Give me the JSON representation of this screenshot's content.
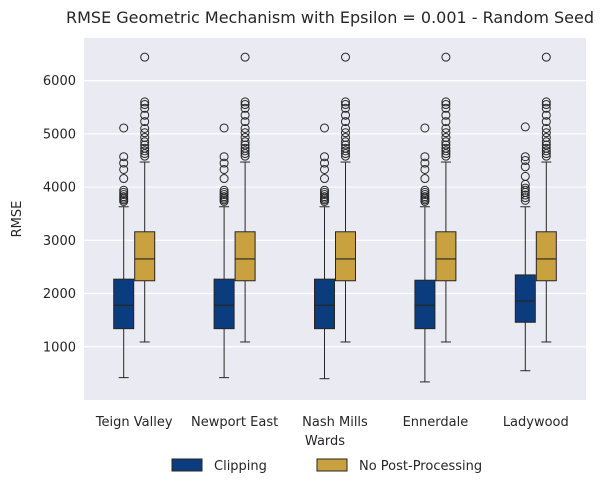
{
  "chart_data": {
    "type": "boxplot",
    "title": "RMSE Geometric Mechanism with Epsilon = 0.001  - Random Seed",
    "xlabel": "Wards",
    "ylabel": "RMSE",
    "ylim": [
      0,
      6800
    ],
    "yticks": [
      1000,
      2000,
      3000,
      4000,
      5000,
      6000
    ],
    "grid": true,
    "legend_position": "bottom-center",
    "categories": [
      "Teign Valley",
      "Newport East",
      "Nash Mills",
      "Ennerdale",
      "Ladywood"
    ],
    "series": [
      {
        "name": "Clipping",
        "color": "#0b3d7e",
        "boxes": [
          {
            "whislo": 420,
            "q1": 1340,
            "med": 1780,
            "q3": 2270,
            "whishi": 3630,
            "fliers": [
              3730,
              3760,
              3790,
              3820,
              3860,
              3900,
              3940,
              4160,
              4330,
              4450,
              4570,
              5110
            ]
          },
          {
            "whislo": 420,
            "q1": 1340,
            "med": 1780,
            "q3": 2270,
            "whishi": 3630,
            "fliers": [
              3730,
              3760,
              3790,
              3820,
              3860,
              3900,
              3940,
              4160,
              4330,
              4450,
              4570,
              5110
            ]
          },
          {
            "whislo": 400,
            "q1": 1340,
            "med": 1780,
            "q3": 2270,
            "whishi": 3630,
            "fliers": [
              3730,
              3760,
              3790,
              3820,
              3860,
              3900,
              3940,
              4160,
              4330,
              4450,
              4570,
              5110
            ]
          },
          {
            "whislo": 340,
            "q1": 1340,
            "med": 1780,
            "q3": 2250,
            "whishi": 3630,
            "fliers": [
              3730,
              3760,
              3790,
              3820,
              3860,
              3900,
              3940,
              4160,
              4330,
              4450,
              4570,
              5110
            ]
          },
          {
            "whislo": 550,
            "q1": 1460,
            "med": 1860,
            "q3": 2350,
            "whishi": 3630,
            "fliers": [
              3750,
              3800,
              3850,
              3900,
              3940,
              3980,
              4050,
              4200,
              4380,
              4500,
              4570,
              5130
            ]
          }
        ]
      },
      {
        "name": "No Post-Processing",
        "color": "#c9a23f",
        "boxes": [
          {
            "whislo": 1090,
            "q1": 2240,
            "med": 2650,
            "q3": 3160,
            "whishi": 4470,
            "fliers": [
              4580,
              4630,
              4680,
              4730,
              4790,
              4850,
              4930,
              5020,
              5100,
              5230,
              5350,
              5480,
              5550,
              5600,
              6440
            ]
          },
          {
            "whislo": 1090,
            "q1": 2240,
            "med": 2650,
            "q3": 3160,
            "whishi": 4470,
            "fliers": [
              4580,
              4630,
              4680,
              4730,
              4790,
              4850,
              4930,
              5020,
              5100,
              5230,
              5350,
              5480,
              5550,
              5600,
              6440
            ]
          },
          {
            "whislo": 1090,
            "q1": 2240,
            "med": 2650,
            "q3": 3160,
            "whishi": 4470,
            "fliers": [
              4580,
              4630,
              4680,
              4730,
              4790,
              4850,
              4930,
              5020,
              5100,
              5230,
              5350,
              5480,
              5550,
              5600,
              6440
            ]
          },
          {
            "whislo": 1090,
            "q1": 2240,
            "med": 2650,
            "q3": 3160,
            "whishi": 4470,
            "fliers": [
              4580,
              4630,
              4680,
              4730,
              4790,
              4850,
              4930,
              5020,
              5100,
              5230,
              5350,
              5480,
              5550,
              5600,
              6440
            ]
          },
          {
            "whislo": 1090,
            "q1": 2240,
            "med": 2650,
            "q3": 3160,
            "whishi": 4470,
            "fliers": [
              4580,
              4630,
              4680,
              4730,
              4790,
              4850,
              4930,
              5020,
              5100,
              5230,
              5350,
              5480,
              5550,
              5600,
              6440
            ]
          }
        ]
      }
    ]
  }
}
